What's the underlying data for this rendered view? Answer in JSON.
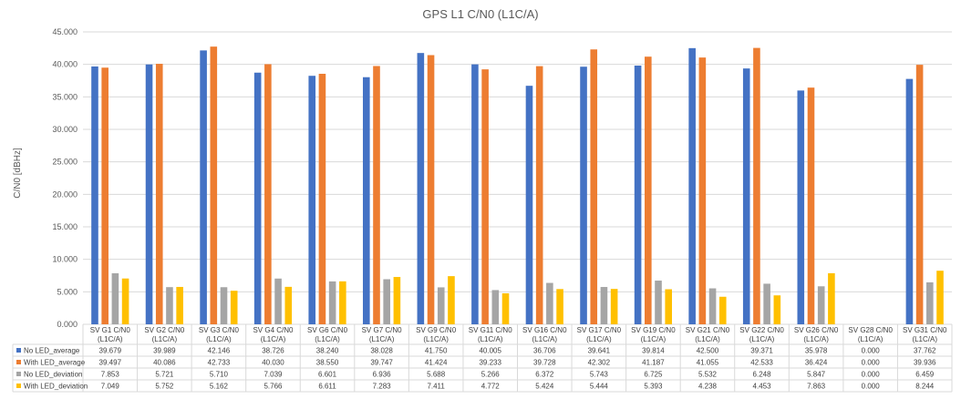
{
  "chart_data": {
    "type": "bar",
    "title": "GPS L1 C/N0 (L1C/A)",
    "ylabel": "C/N0 [dBHz]",
    "xlabel": "",
    "ylim": [
      0,
      45
    ],
    "ytick_step": 5,
    "ytick_labels": [
      "0.000",
      "5.000",
      "10.000",
      "15.000",
      "20.000",
      "25.000",
      "30.000",
      "35.000",
      "40.000",
      "45.000"
    ],
    "grid": true,
    "legend": "table-below",
    "categories": [
      [
        "SV G1 C/N0",
        "(L1C/A)"
      ],
      [
        "SV G2 C/N0",
        "(L1C/A)"
      ],
      [
        "SV G3 C/N0",
        "(L1C/A)"
      ],
      [
        "SV G4 C/N0",
        "(L1C/A)"
      ],
      [
        "SV G6 C/N0",
        "(L1C/A)"
      ],
      [
        "SV G7 C/N0",
        "(L1C/A)"
      ],
      [
        "SV G9 C/N0",
        "(L1C/A)"
      ],
      [
        "SV G11 C/N0",
        "(L1C/A)"
      ],
      [
        "SV G16 C/N0",
        "(L1C/A)"
      ],
      [
        "SV G17 C/N0",
        "(L1C/A)"
      ],
      [
        "SV G19 C/N0",
        "(L1C/A)"
      ],
      [
        "SV G21 C/N0",
        "(L1C/A)"
      ],
      [
        "SV G22 C/N0",
        "(L1C/A)"
      ],
      [
        "SV G26 C/N0",
        "(L1C/A)"
      ],
      [
        "SV G28 C/N0",
        "(L1C/A)"
      ],
      [
        "SV G31 C/N0",
        "(L1C/A)"
      ]
    ],
    "series": [
      {
        "name": "No LED_average",
        "color": "#4472C4",
        "values": [
          39.679,
          39.989,
          42.146,
          38.726,
          38.24,
          38.028,
          41.75,
          40.005,
          36.706,
          39.641,
          39.814,
          42.5,
          39.371,
          35.978,
          0.0,
          37.762
        ],
        "labels": [
          "39.679",
          "39.989",
          "42.146",
          "38.726",
          "38.240",
          "38.028",
          "41.750",
          "40.005",
          "36.706",
          "39.641",
          "39.814",
          "42.500",
          "39.371",
          "35.978",
          "0.000",
          "37.762"
        ]
      },
      {
        "name": "With LED_average",
        "color": "#ED7D31",
        "values": [
          39.497,
          40.086,
          42.733,
          40.03,
          38.55,
          39.747,
          41.424,
          39.233,
          39.728,
          42.302,
          41.187,
          41.055,
          42.533,
          36.424,
          0.0,
          39.936
        ],
        "labels": [
          "39.497",
          "40.086",
          "42.733",
          "40.030",
          "38.550",
          "39.747",
          "41.424",
          "39.233",
          "39.728",
          "42.302",
          "41.187",
          "41.055",
          "42.533",
          "36.424",
          "0.000",
          "39.936"
        ]
      },
      {
        "name": "No LED_deviation",
        "color": "#A5A5A5",
        "values": [
          7.853,
          5.721,
          5.71,
          7.039,
          6.601,
          6.936,
          5.688,
          5.266,
          6.372,
          5.743,
          6.725,
          5.532,
          6.248,
          5.847,
          0.0,
          6.459
        ],
        "labels": [
          "7.853",
          "5.721",
          "5.710",
          "7.039",
          "6.601",
          "6.936",
          "5.688",
          "5.266",
          "6.372",
          "5.743",
          "6.725",
          "5.532",
          "6.248",
          "5.847",
          "0.000",
          "6.459"
        ]
      },
      {
        "name": "With LED_deviation",
        "color": "#FFC000",
        "values": [
          7.049,
          5.752,
          5.162,
          5.766,
          6.611,
          7.283,
          7.411,
          4.772,
          5.424,
          5.444,
          5.393,
          4.238,
          4.453,
          7.863,
          0.0,
          8.244
        ],
        "labels": [
          "7.049",
          "5.752",
          "5.162",
          "5.766",
          "6.611",
          "7.283",
          "7.411",
          "4.772",
          "5.424",
          "5.444",
          "5.393",
          "4.238",
          "4.453",
          "7.863",
          "0.000",
          "8.244"
        ]
      }
    ]
  }
}
